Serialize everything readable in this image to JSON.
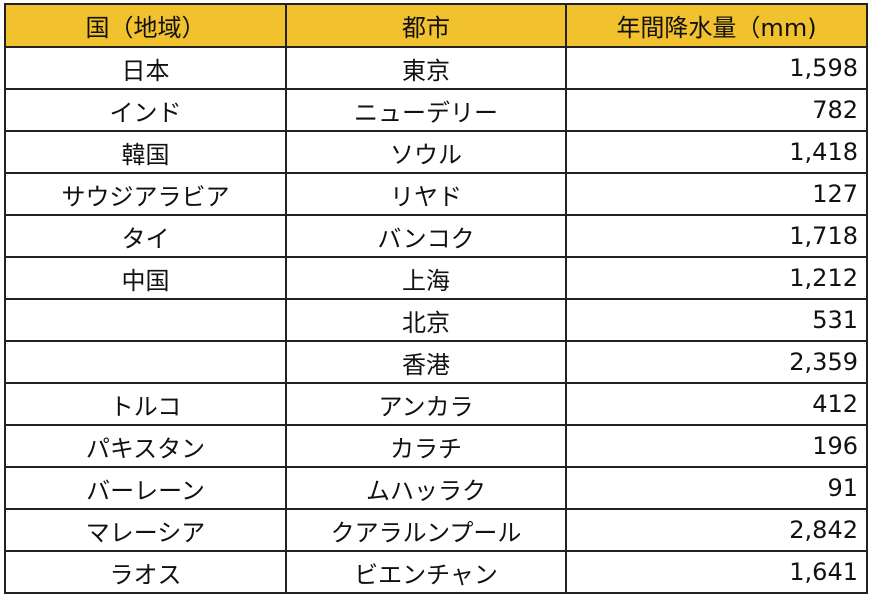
{
  "header": {
    "country": "国（地域）",
    "city": "都市",
    "rainfall": "年間降水量（mm)"
  },
  "header_color": "#F2C12E",
  "rows": [
    {
      "country": "日本",
      "city": "東京",
      "rainfall": "1,598"
    },
    {
      "country": "インド",
      "city": "ニューデリー",
      "rainfall": "782"
    },
    {
      "country": "韓国",
      "city": "ソウル",
      "rainfall": "1,418"
    },
    {
      "country": "サウジアラビア",
      "city": "リヤド",
      "rainfall": "127"
    },
    {
      "country": "タイ",
      "city": "バンコク",
      "rainfall": "1,718"
    },
    {
      "country": "中国",
      "city": "上海",
      "rainfall": "1,212"
    },
    {
      "country": "",
      "city": "北京",
      "rainfall": "531"
    },
    {
      "country": "",
      "city": "香港",
      "rainfall": "2,359"
    },
    {
      "country": "トルコ",
      "city": "アンカラ",
      "rainfall": "412"
    },
    {
      "country": "パキスタン",
      "city": "カラチ",
      "rainfall": "196"
    },
    {
      "country": "バーレーン",
      "city": "ムハッラク",
      "rainfall": "91"
    },
    {
      "country": "マレーシア",
      "city": "クアラルンプール",
      "rainfall": "2,842"
    },
    {
      "country": "ラオス",
      "city": "ビエンチャン",
      "rainfall": "1,641"
    }
  ]
}
